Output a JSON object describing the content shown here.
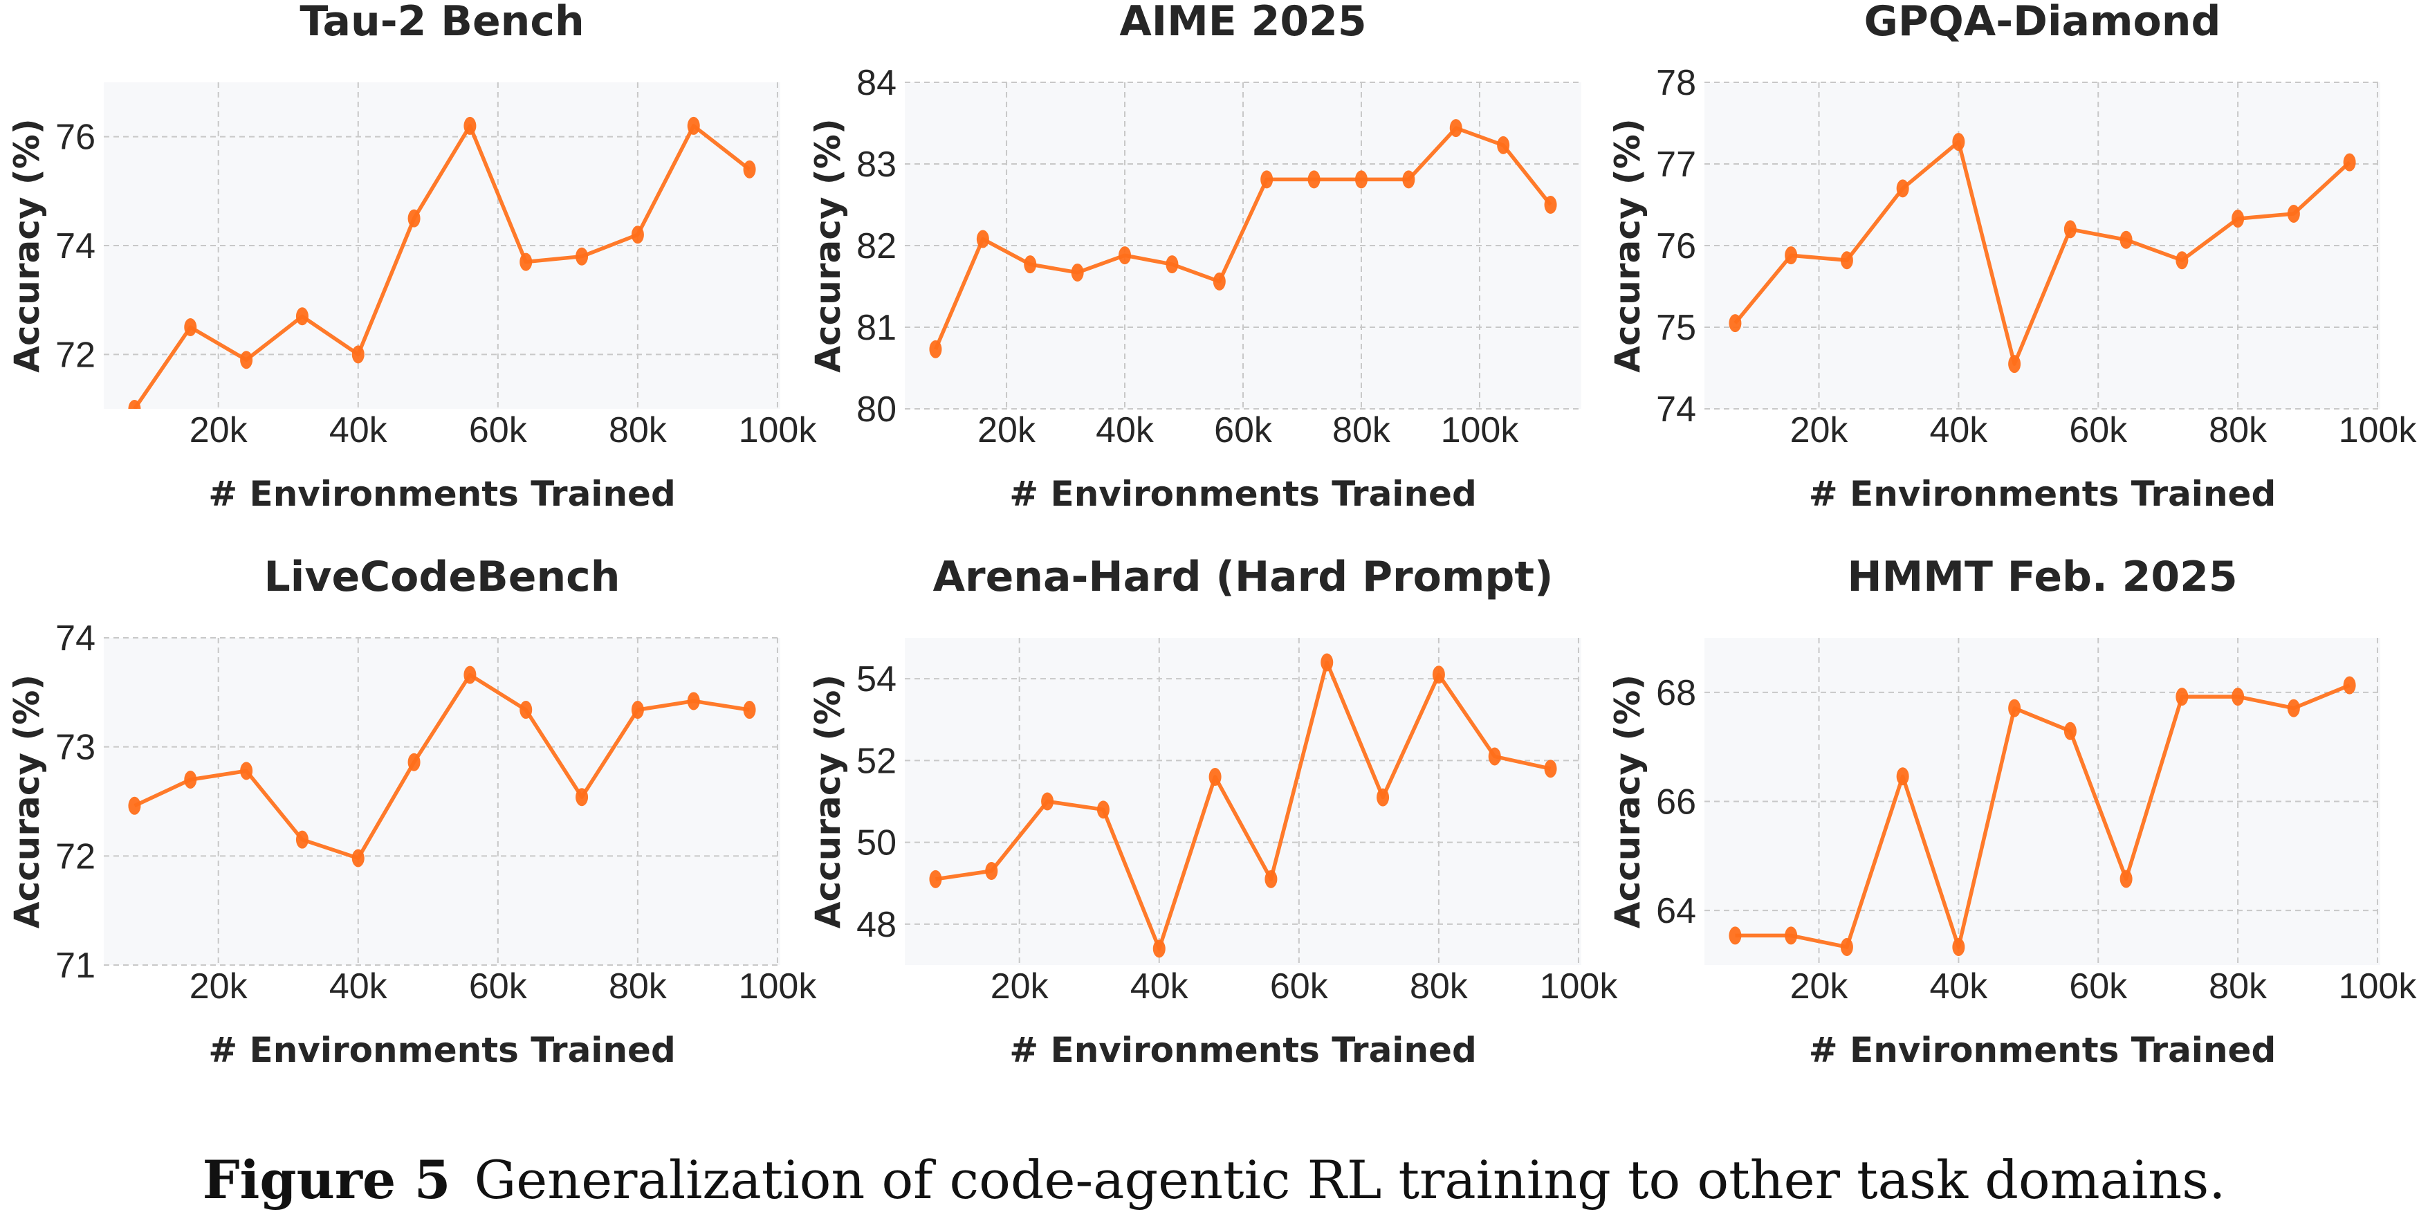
{
  "caption": {
    "label": "Figure 5",
    "text": "Generalization of code-agentic RL training to other task domains."
  },
  "colors": {
    "line": "#ff7a2a",
    "marker": "#ff6f1a",
    "plot_bg": "#f7f8fa",
    "grid": "#c8c8c8"
  },
  "chart_data": [
    {
      "type": "line",
      "title": "Tau-2 Bench",
      "xlabel": "# Environments Trained",
      "ylabel": "Accuracy (%)",
      "x": [
        8000,
        16000,
        24000,
        32000,
        40000,
        48000,
        56000,
        64000,
        72000,
        80000,
        88000,
        96000
      ],
      "y": [
        71.0,
        72.5,
        71.9,
        72.7,
        72.0,
        74.5,
        76.2,
        73.7,
        73.8,
        74.2,
        76.2,
        75.4
      ],
      "xlim": [
        3600,
        100400
      ],
      "ylim": [
        71,
        77
      ],
      "xticks": [
        20000,
        40000,
        60000,
        80000,
        100000
      ],
      "xtick_labels": [
        "20k",
        "40k",
        "60k",
        "80k",
        "100k"
      ],
      "yticks": [
        72,
        74,
        76
      ],
      "ytick_labels": [
        "72",
        "74",
        "76"
      ],
      "grid": true
    },
    {
      "type": "line",
      "title": "AIME 2025",
      "xlabel": "# Environments Trained",
      "ylabel": "Accuracy (%)",
      "x": [
        8000,
        16000,
        24000,
        32000,
        40000,
        48000,
        56000,
        64000,
        72000,
        80000,
        88000,
        96000,
        104000,
        112000
      ],
      "y": [
        80.73,
        82.08,
        81.77,
        81.67,
        81.88,
        81.77,
        81.56,
        82.81,
        82.81,
        82.81,
        82.81,
        83.44,
        83.23,
        82.5
      ],
      "xlim": [
        2800,
        117200
      ],
      "ylim": [
        80,
        84
      ],
      "xticks": [
        20000,
        40000,
        60000,
        80000,
        100000
      ],
      "xtick_labels": [
        "20k",
        "40k",
        "60k",
        "80k",
        "100k"
      ],
      "yticks": [
        80,
        81,
        82,
        83,
        84
      ],
      "ytick_labels": [
        "80",
        "81",
        "82",
        "83",
        "84"
      ],
      "grid": true
    },
    {
      "type": "line",
      "title": "GPQA-Diamond",
      "xlabel": "# Environments Trained",
      "ylabel": "Accuracy (%)",
      "x": [
        8000,
        16000,
        24000,
        32000,
        40000,
        48000,
        56000,
        64000,
        72000,
        80000,
        88000,
        96000
      ],
      "y": [
        75.05,
        75.88,
        75.82,
        76.7,
        77.27,
        74.55,
        76.2,
        76.07,
        75.82,
        76.33,
        76.39,
        77.02
      ],
      "xlim": [
        3600,
        100400
      ],
      "ylim": [
        74,
        78
      ],
      "xticks": [
        20000,
        40000,
        60000,
        80000,
        100000
      ],
      "xtick_labels": [
        "20k",
        "40k",
        "60k",
        "80k",
        "100k"
      ],
      "yticks": [
        74,
        75,
        76,
        77,
        78
      ],
      "ytick_labels": [
        "74",
        "75",
        "76",
        "77",
        "78"
      ],
      "grid": true
    },
    {
      "type": "line",
      "title": "LiveCodeBench",
      "xlabel": "# Environments Trained",
      "ylabel": "Accuracy (%)",
      "x": [
        8000,
        16000,
        24000,
        32000,
        40000,
        48000,
        56000,
        64000,
        72000,
        80000,
        88000,
        96000
      ],
      "y": [
        72.46,
        72.7,
        72.78,
        72.15,
        71.98,
        72.86,
        73.66,
        73.34,
        72.54,
        73.34,
        73.42,
        73.34
      ],
      "xlim": [
        3600,
        100400
      ],
      "ylim": [
        71,
        74
      ],
      "xticks": [
        20000,
        40000,
        60000,
        80000,
        100000
      ],
      "xtick_labels": [
        "20k",
        "40k",
        "60k",
        "80k",
        "100k"
      ],
      "yticks": [
        71,
        72,
        73,
        74
      ],
      "ytick_labels": [
        "71",
        "72",
        "73",
        "74"
      ],
      "grid": true
    },
    {
      "type": "line",
      "title": "Arena-Hard (Hard Prompt)",
      "xlabel": "# Environments Trained",
      "ylabel": "Accuracy (%)",
      "x": [
        8000,
        16000,
        24000,
        32000,
        40000,
        48000,
        56000,
        64000,
        72000,
        80000,
        88000,
        96000
      ],
      "y": [
        49.1,
        49.3,
        51.0,
        50.8,
        47.4,
        51.6,
        49.1,
        54.4,
        51.1,
        54.1,
        52.1,
        51.8
      ],
      "xlim": [
        3600,
        100400
      ],
      "ylim": [
        47,
        55
      ],
      "xticks": [
        20000,
        40000,
        60000,
        80000,
        100000
      ],
      "xtick_labels": [
        "20k",
        "40k",
        "60k",
        "80k",
        "100k"
      ],
      "yticks": [
        48,
        50,
        52,
        54
      ],
      "ytick_labels": [
        "48",
        "50",
        "52",
        "54"
      ],
      "grid": true
    },
    {
      "type": "line",
      "title": "HMMT Feb. 2025",
      "xlabel": "# Environments Trained",
      "ylabel": "Accuracy (%)",
      "x": [
        8000,
        16000,
        24000,
        32000,
        40000,
        48000,
        56000,
        64000,
        72000,
        80000,
        88000,
        96000
      ],
      "y": [
        63.54,
        63.54,
        63.33,
        66.46,
        63.33,
        67.71,
        67.29,
        64.58,
        67.92,
        67.92,
        67.71,
        68.13
      ],
      "xlim": [
        3600,
        100400
      ],
      "ylim": [
        63,
        69
      ],
      "xticks": [
        20000,
        40000,
        60000,
        80000,
        100000
      ],
      "xtick_labels": [
        "20k",
        "40k",
        "60k",
        "80k",
        "100k"
      ],
      "yticks": [
        64,
        66,
        68
      ],
      "ytick_labels": [
        "64",
        "66",
        "68"
      ],
      "grid": true
    }
  ]
}
